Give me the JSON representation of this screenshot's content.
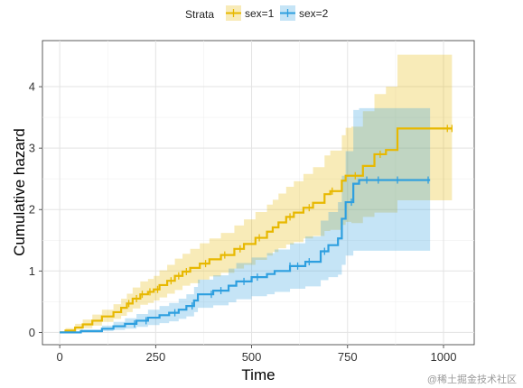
{
  "chart_data": {
    "type": "line",
    "step": true,
    "xlabel": "Time",
    "ylabel": "Cumulative hazard",
    "xlim": [
      -45,
      1080
    ],
    "ylim": [
      -0.2,
      4.75
    ],
    "xticks": [
      0,
      250,
      500,
      750,
      1000
    ],
    "yticks": [
      0,
      1,
      2,
      3,
      4
    ],
    "grid": true,
    "legend": {
      "title": "Strata",
      "position": "top"
    },
    "series": [
      {
        "name": "sex=1",
        "color": "#E7B800",
        "x": [
          0,
          15,
          40,
          60,
          85,
          110,
          140,
          160,
          175,
          190,
          210,
          230,
          245,
          260,
          280,
          300,
          320,
          340,
          365,
          390,
          420,
          455,
          480,
          510,
          540,
          555,
          570,
          590,
          610,
          635,
          660,
          690,
          705,
          720,
          735,
          745,
          760,
          790,
          820,
          850,
          880,
          1022
        ],
        "y": [
          0,
          0.03,
          0.08,
          0.13,
          0.19,
          0.26,
          0.33,
          0.4,
          0.47,
          0.55,
          0.62,
          0.66,
          0.7,
          0.77,
          0.84,
          0.92,
          0.99,
          1.05,
          1.12,
          1.19,
          1.26,
          1.36,
          1.44,
          1.54,
          1.64,
          1.71,
          1.79,
          1.88,
          1.95,
          2.03,
          2.11,
          2.25,
          2.3,
          2.3,
          2.47,
          2.55,
          2.55,
          2.71,
          2.9,
          2.97,
          3.32,
          3.32
        ],
        "lower": [
          0,
          0.01,
          0.04,
          0.07,
          0.11,
          0.17,
          0.22,
          0.27,
          0.33,
          0.39,
          0.45,
          0.48,
          0.52,
          0.57,
          0.63,
          0.69,
          0.76,
          0.8,
          0.86,
          0.91,
          0.97,
          1.04,
          1.1,
          1.18,
          1.25,
          1.31,
          1.37,
          1.43,
          1.47,
          1.53,
          1.57,
          1.65,
          1.67,
          1.67,
          1.75,
          1.8,
          1.78,
          1.88,
          1.95,
          1.95,
          2.15,
          2.15
        ],
        "upper": [
          0,
          0.07,
          0.14,
          0.21,
          0.29,
          0.37,
          0.46,
          0.55,
          0.63,
          0.73,
          0.83,
          0.87,
          0.92,
          1.01,
          1.1,
          1.2,
          1.28,
          1.36,
          1.45,
          1.53,
          1.62,
          1.74,
          1.84,
          1.96,
          2.08,
          2.16,
          2.26,
          2.37,
          2.46,
          2.58,
          2.69,
          2.88,
          2.96,
          2.96,
          3.21,
          3.33,
          3.35,
          3.6,
          3.88,
          4.0,
          4.52,
          4.52
        ],
        "censor_times": [
          180,
          200,
          215,
          235,
          255,
          290,
          310,
          330,
          380,
          430,
          470,
          520,
          600,
          650,
          710,
          770,
          835,
          1010,
          1022
        ]
      },
      {
        "name": "sex=2",
        "color": "#2E9FDF",
        "x": [
          0,
          55,
          110,
          140,
          170,
          200,
          230,
          260,
          285,
          310,
          330,
          350,
          360,
          400,
          440,
          460,
          500,
          540,
          560,
          600,
          640,
          680,
          700,
          725,
          735,
          745,
          765,
          780,
          965
        ],
        "y": [
          0,
          0.02,
          0.06,
          0.1,
          0.14,
          0.19,
          0.24,
          0.28,
          0.32,
          0.37,
          0.43,
          0.52,
          0.62,
          0.68,
          0.76,
          0.83,
          0.9,
          0.95,
          1.0,
          1.08,
          1.15,
          1.32,
          1.42,
          1.53,
          1.85,
          2.12,
          2.42,
          2.48,
          2.48
        ],
        "lower": [
          0,
          0.0,
          0.02,
          0.04,
          0.06,
          0.09,
          0.12,
          0.15,
          0.18,
          0.22,
          0.26,
          0.33,
          0.4,
          0.44,
          0.49,
          0.54,
          0.59,
          0.62,
          0.66,
          0.71,
          0.75,
          0.85,
          0.9,
          0.94,
          1.1,
          1.25,
          1.33,
          1.33,
          1.33
        ],
        "upper": [
          0,
          0.05,
          0.11,
          0.17,
          0.23,
          0.3,
          0.37,
          0.43,
          0.48,
          0.55,
          0.62,
          0.74,
          0.86,
          0.93,
          1.04,
          1.13,
          1.22,
          1.29,
          1.35,
          1.45,
          1.56,
          1.82,
          1.96,
          2.12,
          2.55,
          2.95,
          3.62,
          3.65,
          3.65
        ],
        "censor_times": [
          195,
          225,
          300,
          345,
          395,
          420,
          480,
          515,
          600,
          620,
          650,
          690,
          760,
          800,
          830,
          880,
          960
        ]
      }
    ]
  },
  "watermark": "@稀土掘金技术社区"
}
